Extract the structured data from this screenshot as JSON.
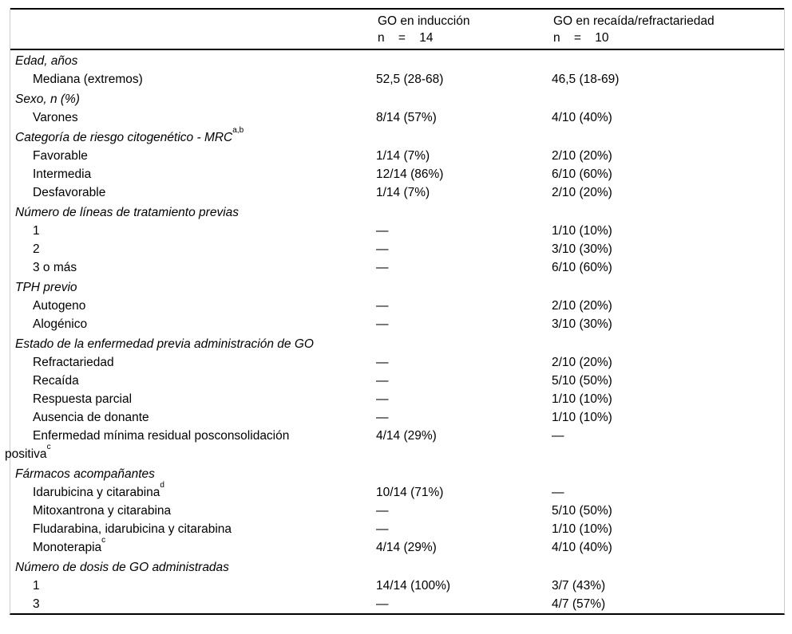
{
  "colors": {
    "rule": "#000000",
    "side_border": "#cccccc",
    "text": "#000000",
    "background": "#ffffff"
  },
  "table": {
    "header": {
      "col_induction": {
        "title": "GO en inducción",
        "n": "n = 14"
      },
      "col_relapse": {
        "title": "GO en recaída/refractariedad",
        "n": "n = 10"
      }
    },
    "rows": [
      {
        "type": "category",
        "label": "Edad, años",
        "induction": "",
        "relapse": ""
      },
      {
        "type": "item",
        "label": "Mediana (extremos)",
        "induction": "52,5 (28-68)",
        "relapse": "46,5 (18-69)"
      },
      {
        "type": "category",
        "label": "Sexo, n (%)",
        "induction": "",
        "relapse": ""
      },
      {
        "type": "item",
        "label": "Varones",
        "induction": "8/14 (57%)",
        "relapse": "4/10 (40%)"
      },
      {
        "type": "category",
        "label": "Categoría de riesgo citogenético - MRC",
        "sup": "a,b",
        "induction": "",
        "relapse": ""
      },
      {
        "type": "item",
        "label": "Favorable",
        "induction": "1/14 (7%)",
        "relapse": "2/10 (20%)"
      },
      {
        "type": "item",
        "label": "Intermedia",
        "induction": "12/14 (86%)",
        "relapse": "6/10 (60%)"
      },
      {
        "type": "item",
        "label": "Desfavorable",
        "induction": "1/14 (7%)",
        "relapse": "2/10 (20%)"
      },
      {
        "type": "category",
        "label": "Número de líneas de tratamiento previas",
        "induction": "",
        "relapse": ""
      },
      {
        "type": "item",
        "label": "1",
        "induction": "—",
        "relapse": "1/10 (10%)"
      },
      {
        "type": "item",
        "label": "2",
        "induction": "—",
        "relapse": "3/10 (30%)"
      },
      {
        "type": "item",
        "label": "3 o más",
        "induction": "—",
        "relapse": "6/10 (60%)"
      },
      {
        "type": "category",
        "label": "TPH previo",
        "induction": "",
        "relapse": ""
      },
      {
        "type": "item",
        "label": "Autogeno",
        "induction": "—",
        "relapse": "2/10 (20%)"
      },
      {
        "type": "item",
        "label": "Alogénico",
        "induction": "—",
        "relapse": "3/10 (30%)"
      },
      {
        "type": "category",
        "label": "Estado de la enfermedad previa administración de GO",
        "induction": "",
        "relapse": ""
      },
      {
        "type": "item",
        "label": "Refractariedad",
        "induction": "—",
        "relapse": "2/10 (20%)"
      },
      {
        "type": "item",
        "label": "Recaída",
        "induction": "—",
        "relapse": "5/10 (50%)"
      },
      {
        "type": "item",
        "label": "Respuesta parcial",
        "induction": "—",
        "relapse": "1/10 (10%)"
      },
      {
        "type": "item",
        "label": "Ausencia de donante",
        "induction": "—",
        "relapse": "1/10 (10%)"
      },
      {
        "type": "item",
        "wrap": true,
        "label": "Enfermedad mínima residual posconsolidación\npositiva",
        "sup": "c",
        "induction": "4/14 (29%)",
        "relapse": "—"
      },
      {
        "type": "category",
        "label": "Fármacos acompañantes",
        "induction": "",
        "relapse": ""
      },
      {
        "type": "item",
        "label": "Idarubicina y citarabina",
        "sup": "d",
        "induction": "10/14 (71%)",
        "relapse": "—"
      },
      {
        "type": "item",
        "label": "Mitoxantrona y citarabina",
        "induction": "—",
        "relapse": "5/10 (50%)"
      },
      {
        "type": "item",
        "label": "Fludarabina, idarubicina y citarabina",
        "induction": "—",
        "relapse": "1/10 (10%)"
      },
      {
        "type": "item",
        "label": "Monoterapia",
        "sup": "c",
        "induction": "4/14 (29%)",
        "relapse": "4/10 (40%)"
      },
      {
        "type": "category",
        "label": "Número de dosis de GO administradas",
        "induction": "",
        "relapse": ""
      },
      {
        "type": "item",
        "label": "1",
        "induction": "14/14 (100%)",
        "relapse": "3/7 (43%)"
      },
      {
        "type": "item",
        "label": "3",
        "induction": "—",
        "relapse": "4/7 (57%)"
      }
    ]
  }
}
